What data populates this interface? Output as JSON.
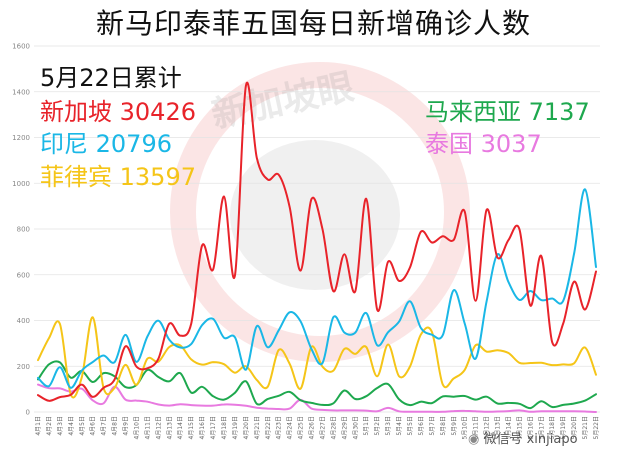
{
  "chart_data": {
    "type": "line",
    "title": "新马印泰菲五国每日新增确诊人数",
    "subtitle": "5月22日累计",
    "ylim": [
      0,
      1600
    ],
    "yticks": [
      0,
      200,
      400,
      600,
      800,
      1000,
      1200,
      1400,
      1600
    ],
    "categories": [
      "4月1日",
      "4月2日",
      "4月3日",
      "4月4日",
      "4月5日",
      "4月6日",
      "4月7日",
      "4月8日",
      "4月9日",
      "4月10日",
      "4月11日",
      "4月12日",
      "4月13日",
      "4月14日",
      "4月15日",
      "4月16日",
      "4月17日",
      "4月18日",
      "4月19日",
      "4月20日",
      "4月21日",
      "4月22日",
      "4月23日",
      "4月24日",
      "4月25日",
      "4月26日",
      "4月27日",
      "4月28日",
      "4月29日",
      "4月30日",
      "5月1日",
      "5月2日",
      "5月3日",
      "5月4日",
      "5月5日",
      "5月6日",
      "5月7日",
      "5月8日",
      "5月9日",
      "5月10日",
      "5月11日",
      "5月12日",
      "5月13日",
      "5月14日",
      "5月15日",
      "5月16日",
      "5月17日",
      "5月18日",
      "5月19日",
      "5月20日",
      "5月21日",
      "5月22日"
    ],
    "series": [
      {
        "name": "新加坡",
        "total": "30426",
        "color": "#e8232a",
        "values": [
          74,
          49,
          65,
          75,
          120,
          66,
          106,
          142,
          287,
          198,
          191,
          233,
          386,
          334,
          386,
          728,
          623,
          942,
          596,
          1426,
          1111,
          1016,
          1037,
          897,
          618,
          931,
          799,
          528,
          690,
          528,
          932,
          447,
          657,
          573,
          632,
          788,
          741,
          768,
          753,
          876,
          486,
          884,
          675,
          752,
          799,
          465,
          682,
          305,
          387,
          570,
          448,
          614
        ]
      },
      {
        "name": "印尼",
        "total": "20796",
        "color": "#1ab7e6",
        "values": [
          149,
          113,
          196,
          106,
          181,
          218,
          247,
          218,
          337,
          219,
          330,
          399,
          316,
          282,
          297,
          380,
          407,
          325,
          327,
          185,
          375,
          283,
          357,
          436,
          396,
          275,
          214,
          415,
          347,
          347,
          433,
          292,
          349,
          395,
          484,
          367,
          338,
          336,
          533,
          387,
          233,
          484,
          689,
          568,
          490,
          529,
          489,
          496,
          486,
          693,
          973,
          634
        ]
      },
      {
        "name": "菲律宾",
        "total": "13597",
        "color": "#f5c518",
        "values": [
          227,
          322,
          385,
          76,
          152,
          414,
          104,
          106,
          206,
          119,
          233,
          220,
          284,
          291,
          230,
          207,
          218,
          209,
          172,
          200,
          140,
          111,
          271,
          211,
          102,
          285,
          198,
          181,
          276,
          254,
          284,
          156,
          295,
          156,
          199,
          339,
          350,
          120,
          147,
          184,
          292,
          264,
          270,
          258,
          215,
          214,
          215,
          205,
          208,
          213,
          282,
          163
        ]
      },
      {
        "name": "马来西亚",
        "total": "7137",
        "color": "#1ea84e",
        "values": [
          142,
          208,
          217,
          150,
          179,
          131,
          170,
          156,
          109,
          118,
          184,
          153,
          134,
          170,
          85,
          110,
          69,
          54,
          84,
          134,
          36,
          57,
          71,
          88,
          51,
          40,
          31,
          38,
          94,
          57,
          69,
          105,
          122,
          55,
          30,
          45,
          39,
          68,
          67,
          70,
          54,
          67,
          37,
          40,
          36,
          17,
          47,
          22,
          31,
          37,
          50,
          78
        ]
      },
      {
        "name": "泰国",
        "total": "3037",
        "color": "#e87ae0",
        "values": [
          120,
          104,
          103,
          89,
          102,
          51,
          38,
          111,
          54,
          50,
          45,
          33,
          28,
          34,
          30,
          28,
          28,
          33,
          32,
          27,
          19,
          15,
          13,
          15,
          53,
          15,
          9,
          7,
          7,
          7,
          6,
          3,
          18,
          3,
          1,
          1,
          1,
          1,
          4,
          5,
          3,
          1,
          2,
          4,
          7,
          1,
          3,
          3,
          3,
          3,
          2,
          0
        ]
      }
    ]
  },
  "annotation_date": "5月22日累计",
  "footer": {
    "credit": "微信号 xinjiapo"
  },
  "watermark": {
    "text": "新加坡眼"
  }
}
